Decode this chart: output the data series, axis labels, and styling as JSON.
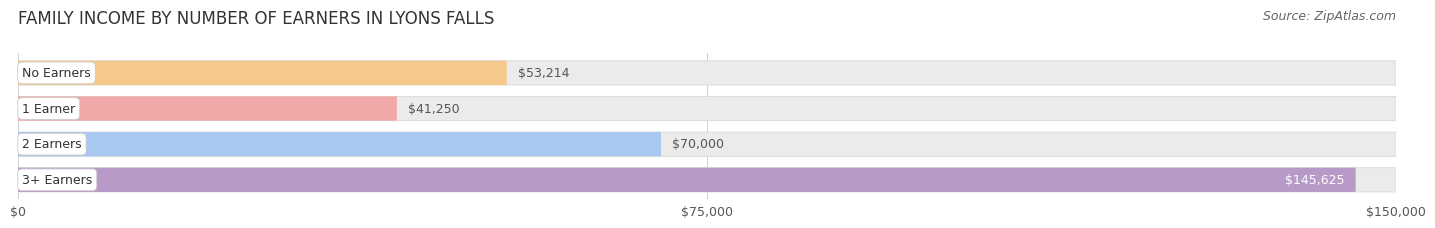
{
  "title": "FAMILY INCOME BY NUMBER OF EARNERS IN LYONS FALLS",
  "source": "Source: ZipAtlas.com",
  "categories": [
    "No Earners",
    "1 Earner",
    "2 Earners",
    "3+ Earners"
  ],
  "values": [
    53214,
    41250,
    70000,
    145625
  ],
  "bar_colors": [
    "#f5c98a",
    "#f0a8a8",
    "#a8c8f0",
    "#b89ac8"
  ],
  "label_values": [
    "$53,214",
    "$41,250",
    "$70,000",
    "$145,625"
  ],
  "value_inside": [
    false,
    false,
    false,
    true
  ],
  "xlim": [
    0,
    150000
  ],
  "xticks": [
    0,
    75000,
    150000
  ],
  "xtick_labels": [
    "$0",
    "$75,000",
    "$150,000"
  ],
  "background_color": "#ffffff",
  "bar_track_color": "#ebebeb",
  "bar_track_edge_color": "#d8d8d8",
  "title_fontsize": 12,
  "source_fontsize": 9,
  "tick_fontsize": 9,
  "label_fontsize": 9,
  "value_fontsize": 9
}
